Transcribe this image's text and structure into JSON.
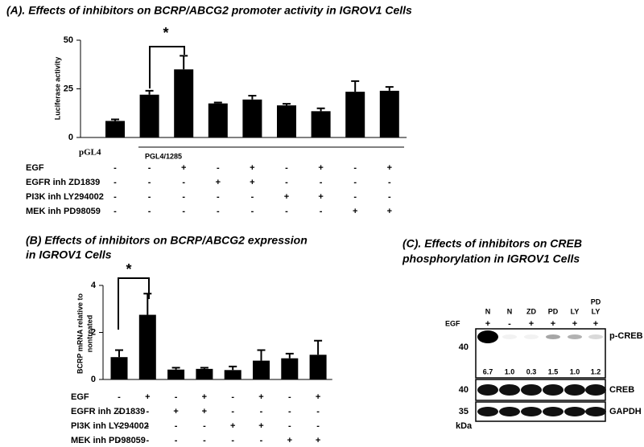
{
  "chart_data": [
    {
      "type": "bar",
      "title": [
        "(A). Effects of inhibitors on BCRP/ABCG2 promoter activity in IGROV1 Cells"
      ],
      "y_label": [
        "Luciferase activity"
      ],
      "ylim": [
        0,
        50
      ],
      "yticks": [
        0,
        25,
        50
      ],
      "values": [
        8.5,
        22,
        35,
        17.5,
        19.5,
        16.5,
        13.5,
        23.5,
        24
      ],
      "errors": [
        0.8,
        2,
        7,
        0.5,
        2,
        0.8,
        1.5,
        5.5,
        2
      ],
      "color": "#000000",
      "sublabels": [
        "pGL4",
        "PGL4/1285"
      ],
      "annotation": "*",
      "conditions": [
        {
          "label": "EGF",
          "signs": [
            "-",
            "-",
            "+",
            "-",
            "+",
            "-",
            "+",
            "-",
            "+"
          ]
        },
        {
          "label": "EGFR inh ZD1839",
          "signs": [
            "-",
            "-",
            "-",
            "+",
            "+",
            "-",
            "-",
            "-",
            "-"
          ]
        },
        {
          "label": "PI3K inh LY294002",
          "signs": [
            "-",
            "-",
            "-",
            "-",
            "-",
            "+",
            "+",
            "-",
            "-"
          ]
        },
        {
          "label": "MEK inh PD98059",
          "signs": [
            "-",
            "-",
            "-",
            "-",
            "-",
            "-",
            "-",
            "+",
            "+"
          ]
        }
      ]
    },
    {
      "type": "bar",
      "title": [
        "(B) Effects of inhibitors on BCRP/ABCG2 expression",
        "in IGROV1 Cells"
      ],
      "y_label": [
        "BCRP mRNA relative to",
        "nontreated"
      ],
      "ylim": [
        0,
        4
      ],
      "yticks": [
        0,
        2,
        4
      ],
      "values": [
        0.95,
        2.75,
        0.42,
        0.45,
        0.4,
        0.8,
        0.9,
        1.05
      ],
      "errors": [
        0.3,
        0.9,
        0.08,
        0.05,
        0.15,
        0.45,
        0.2,
        0.6
      ],
      "color": "#000000",
      "annotation": "*",
      "conditions": [
        {
          "label": "EGF",
          "signs": [
            "-",
            "+",
            "-",
            "+",
            "-",
            "+",
            "-",
            "+"
          ]
        },
        {
          "label": "EGFR inh ZD1839",
          "signs": [
            "-",
            "-",
            "+",
            "+",
            "-",
            "-",
            "-",
            "-"
          ]
        },
        {
          "label": "PI3K inh LY294002",
          "signs": [
            "-",
            "-",
            "-",
            "-",
            "+",
            "+",
            "-",
            "-"
          ]
        },
        {
          "label": "MEK inh PD98059",
          "signs": [
            "-",
            "-",
            "-",
            "-",
            "-",
            "-",
            "+",
            "+"
          ]
        }
      ]
    }
  ],
  "blot": {
    "title": [
      "(C). Effects of inhibitors on CREB",
      "phosphorylation in IGROV1 Cells"
    ],
    "lanes": [
      [
        "N"
      ],
      [
        "N"
      ],
      [
        "ZD"
      ],
      [
        "PD"
      ],
      [
        "LY"
      ],
      [
        "PD",
        "LY"
      ]
    ],
    "treatment": {
      "label": "EGF",
      "signs": [
        "+",
        "-",
        "+",
        "+",
        "+",
        "+"
      ]
    },
    "quantification": [
      "6.7",
      "1.0",
      "0.3",
      "1.5",
      "1.0",
      "1.2"
    ],
    "bands": [
      "p-CREB",
      "CREB",
      "GAPDH"
    ],
    "markers": [
      "40",
      "40",
      "35"
    ],
    "marker_unit": "kDa"
  }
}
